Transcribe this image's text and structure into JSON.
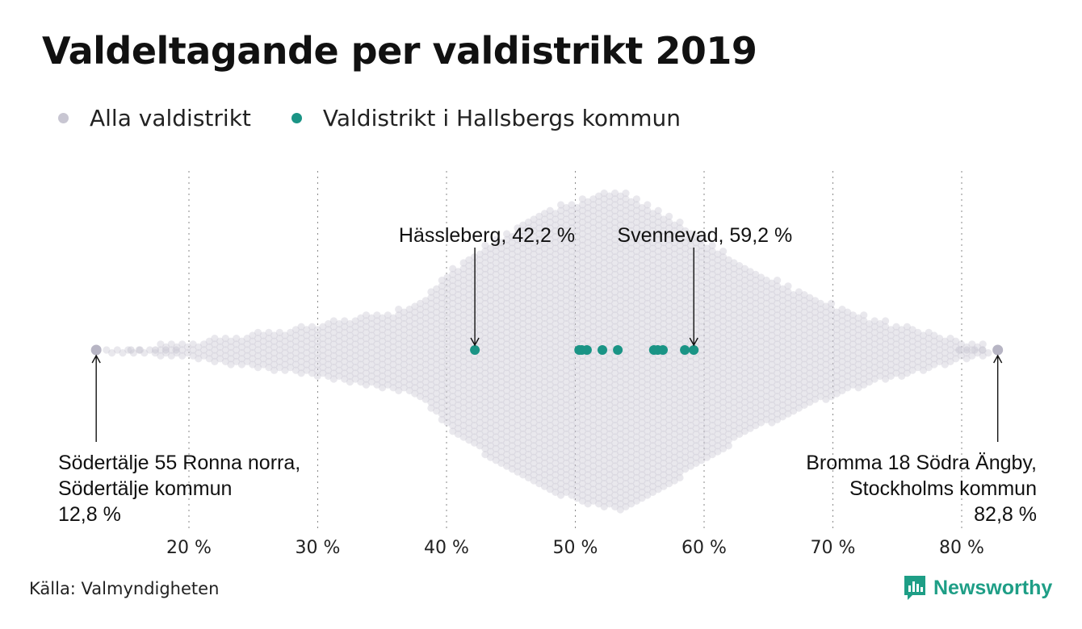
{
  "title": "Valdeltagande per valdistrikt 2019",
  "legend": [
    {
      "label": "Alla valdistrikt",
      "color": "#c8c6d2"
    },
    {
      "label": "Valdistrikt i Hallsbergs kommun",
      "color": "#1a9485"
    }
  ],
  "source": "Källa: Valmyndigheten",
  "brand": "Newsworthy",
  "chart_data": {
    "type": "scatter",
    "subtype": "beeswarm",
    "title": "Valdeltagande per valdistrikt 2019",
    "xlabel": "",
    "ylabel": "",
    "xlim": [
      11,
      84
    ],
    "x_ticks": [
      20,
      30,
      40,
      50,
      60,
      70,
      80
    ],
    "x_tick_labels": [
      "20 %",
      "30 %",
      "40 %",
      "50 %",
      "60 %",
      "70 %",
      "80 %"
    ],
    "grid": "vertical dotted",
    "legend_position": "top-left",
    "series": [
      {
        "name": "Alla valdistrikt",
        "color": "#c8c6d2",
        "distribution": "approximately 6 000 districts, roughly between 12.8 % and 82.8 %, densest around 53 %",
        "min": 12.8,
        "max": 82.8,
        "mode": 53.5
      },
      {
        "name": "Valdistrikt i Hallsbergs kommun",
        "color": "#1a9485",
        "values": [
          42.2,
          50.3,
          50.5,
          50.9,
          52.1,
          53.3,
          56.1,
          56.4,
          56.8,
          58.5,
          59.2
        ]
      }
    ],
    "annotations": [
      {
        "text": "Hässleberg, 42,2 %",
        "x": 42.2
      },
      {
        "text": "Svennevad, 59,2 %",
        "x": 59.2
      },
      {
        "text": [
          "Södertälje 55 Ronna norra,",
          "Södertälje kommun",
          "12,8 %"
        ],
        "x": 12.8
      },
      {
        "text": [
          "Bromma 18 Södra Ängby,",
          "Stockholms kommun",
          "82,8 %"
        ],
        "x": 82.8
      }
    ]
  }
}
